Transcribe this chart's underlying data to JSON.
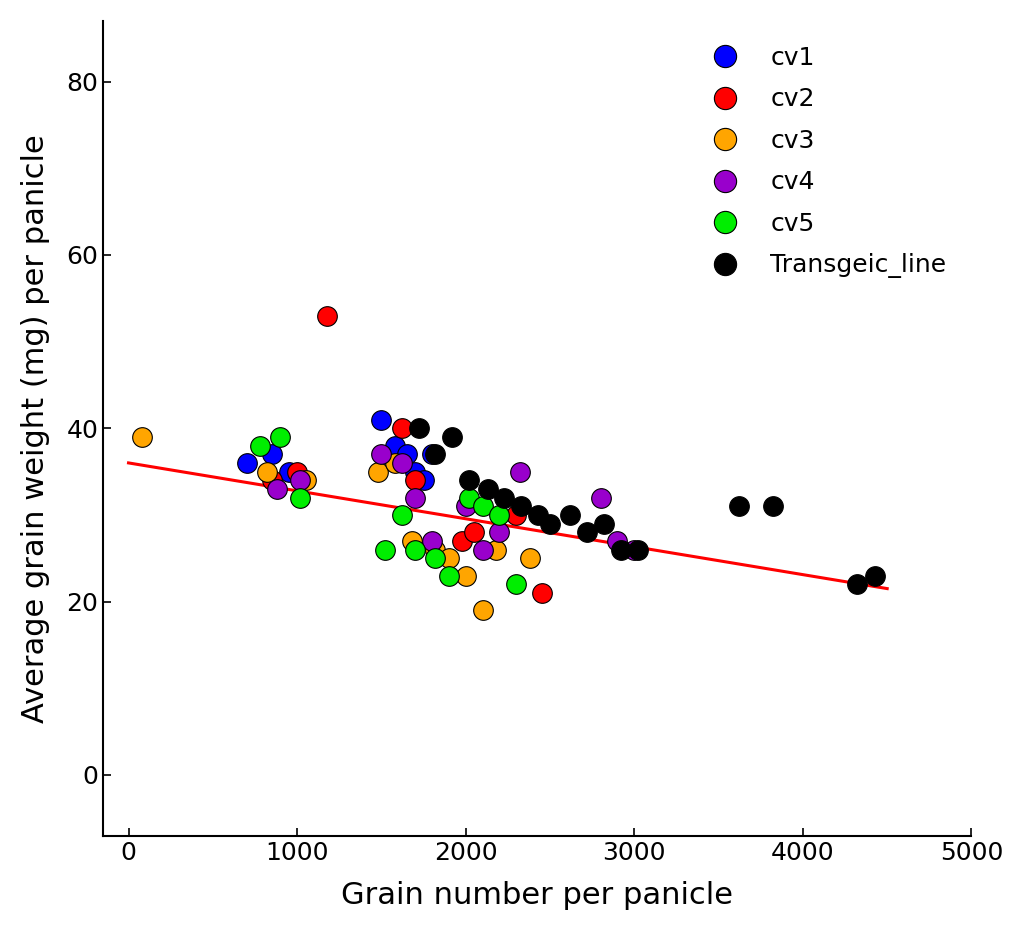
{
  "title": "",
  "xlabel": "Grain number per panicle",
  "ylabel": "Average grain weight (mg) per panicle",
  "xlim": [
    -150,
    5000
  ],
  "ylim": [
    -7,
    87
  ],
  "xticks": [
    0,
    1000,
    2000,
    3000,
    4000,
    5000
  ],
  "yticks": [
    0,
    20,
    40,
    60,
    80
  ],
  "groups": {
    "cv1": {
      "color": "#0000FF",
      "x": [
        700,
        850,
        950,
        1500,
        1580,
        1650,
        1700,
        1750,
        1800
      ],
      "y": [
        36,
        37,
        35,
        41,
        38,
        37,
        35,
        34,
        37
      ]
    },
    "cv2": {
      "color": "#FF0000",
      "x": [
        1180,
        850,
        1000,
        1620,
        1700,
        1980,
        2050,
        2300,
        2450
      ],
      "y": [
        53,
        34,
        35,
        40,
        34,
        27,
        28,
        30,
        21
      ]
    },
    "cv3": {
      "color": "#FFA500",
      "x": [
        80,
        820,
        1050,
        1480,
        1580,
        1680,
        1820,
        1900,
        2000,
        2100,
        2180,
        2380
      ],
      "y": [
        39,
        35,
        34,
        35,
        36,
        27,
        26,
        25,
        23,
        19,
        26,
        25
      ]
    },
    "cv4": {
      "color": "#9900CC",
      "x": [
        880,
        1020,
        1500,
        1620,
        1700,
        1800,
        2000,
        2100,
        2200,
        2320,
        2800,
        2900,
        3000
      ],
      "y": [
        33,
        34,
        37,
        36,
        32,
        27,
        31,
        26,
        28,
        35,
        32,
        27,
        26
      ]
    },
    "cv5": {
      "color": "#00EE00",
      "x": [
        780,
        900,
        1020,
        1520,
        1620,
        1700,
        1820,
        1900,
        2020,
        2100,
        2200,
        2300
      ],
      "y": [
        38,
        39,
        32,
        26,
        30,
        26,
        25,
        23,
        32,
        31,
        30,
        22
      ]
    },
    "Transgeic_line": {
      "color": "#000000",
      "x": [
        1720,
        1820,
        1920,
        2020,
        2130,
        2230,
        2330,
        2430,
        2500,
        2620,
        2720,
        2820,
        2920,
        3020,
        3620,
        3820,
        4320,
        4430
      ],
      "y": [
        40,
        37,
        39,
        34,
        33,
        32,
        31,
        30,
        29,
        30,
        28,
        29,
        26,
        26,
        31,
        31,
        22,
        23
      ]
    }
  },
  "regression": {
    "x_start": 0,
    "x_end": 4500,
    "y_start": 36.0,
    "y_end": 21.5,
    "color": "#FF0000",
    "linewidth": 2.2
  },
  "marker_size": 200,
  "background_color": "#FFFFFF",
  "legend_fontsize": 18,
  "axis_label_fontsize": 22,
  "tick_fontsize": 18
}
